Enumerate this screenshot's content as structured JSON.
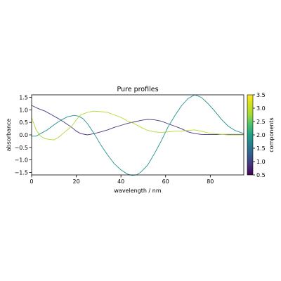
{
  "chart_data": {
    "type": "line",
    "title": "Pure profiles",
    "xlabel": "wavelength / nm",
    "ylabel": "absorbance",
    "xlim": [
      0,
      95
    ],
    "ylim": [
      -1.6,
      1.6
    ],
    "xticks": [
      0,
      20,
      40,
      60,
      80
    ],
    "xtick_labels": [
      "0",
      "20",
      "40",
      "60",
      "80"
    ],
    "yticks": [
      -1.5,
      -1.0,
      -0.5,
      0.0,
      0.5,
      1.0,
      1.5
    ],
    "ytick_labels": [
      "−1.5",
      "−1.0",
      "−0.5",
      "0.0",
      "0.5",
      "1.0",
      "1.5"
    ],
    "grid": false,
    "colorbar": {
      "label": "components",
      "range": [
        0.5,
        3.5
      ],
      "colormap": "viridis",
      "ticks": [
        0.5,
        1.0,
        1.5,
        2.0,
        2.5,
        3.0,
        3.5
      ],
      "tick_labels": [
        "0.5",
        "1.0",
        "1.5",
        "2.0",
        "2.5",
        "3.0",
        "3.5"
      ]
    },
    "series": [
      {
        "color": "#46337e",
        "points": [
          [
            0,
            1.18
          ],
          [
            3,
            1.05
          ],
          [
            6,
            0.95
          ],
          [
            9,
            0.8
          ],
          [
            12,
            0.65
          ],
          [
            15,
            0.48
          ],
          [
            18,
            0.3
          ],
          [
            20,
            0.15
          ],
          [
            22,
            0.05
          ],
          [
            25,
            0.0
          ],
          [
            28,
            0.05
          ],
          [
            31,
            0.12
          ],
          [
            34,
            0.2
          ],
          [
            37,
            0.3
          ],
          [
            40,
            0.38
          ],
          [
            43,
            0.46
          ],
          [
            46,
            0.52
          ],
          [
            49,
            0.58
          ],
          [
            52,
            0.62
          ],
          [
            55,
            0.6
          ],
          [
            58,
            0.55
          ],
          [
            61,
            0.45
          ],
          [
            64,
            0.35
          ],
          [
            67,
            0.25
          ],
          [
            70,
            0.12
          ],
          [
            73,
            0.05
          ],
          [
            76,
            0.02
          ],
          [
            79,
            0.01
          ],
          [
            82,
            0.01
          ],
          [
            85,
            0.02
          ],
          [
            88,
            0.02
          ],
          [
            91,
            0.02
          ],
          [
            95,
            0.02
          ]
        ]
      },
      {
        "color": "#21918c",
        "points": [
          [
            0,
            -0.05
          ],
          [
            2,
            -0.05
          ],
          [
            4,
            0.05
          ],
          [
            7,
            0.2
          ],
          [
            10,
            0.4
          ],
          [
            13,
            0.58
          ],
          [
            16,
            0.72
          ],
          [
            19,
            0.78
          ],
          [
            21,
            0.75
          ],
          [
            23,
            0.65
          ],
          [
            25,
            0.45
          ],
          [
            28,
            0.05
          ],
          [
            31,
            -0.4
          ],
          [
            34,
            -0.8
          ],
          [
            37,
            -1.15
          ],
          [
            40,
            -1.4
          ],
          [
            43,
            -1.57
          ],
          [
            45,
            -1.62
          ],
          [
            47,
            -1.6
          ],
          [
            49,
            -1.48
          ],
          [
            52,
            -1.2
          ],
          [
            55,
            -0.75
          ],
          [
            58,
            -0.25
          ],
          [
            61,
            0.3
          ],
          [
            64,
            0.75
          ],
          [
            67,
            1.15
          ],
          [
            70,
            1.45
          ],
          [
            73,
            1.6
          ],
          [
            76,
            1.5
          ],
          [
            79,
            1.25
          ],
          [
            82,
            0.95
          ],
          [
            85,
            0.62
          ],
          [
            88,
            0.35
          ],
          [
            91,
            0.18
          ],
          [
            95,
            0.05
          ]
        ]
      },
      {
        "color": "#addc30",
        "points": [
          [
            0,
            0.7
          ],
          [
            2,
            0.2
          ],
          [
            4,
            -0.05
          ],
          [
            6,
            -0.15
          ],
          [
            8,
            -0.18
          ],
          [
            10,
            -0.2
          ],
          [
            12,
            -0.1
          ],
          [
            14,
            0.05
          ],
          [
            16,
            0.2
          ],
          [
            18,
            0.35
          ],
          [
            20,
            0.6
          ],
          [
            22,
            0.8
          ],
          [
            25,
            0.9
          ],
          [
            28,
            0.95
          ],
          [
            31,
            0.93
          ],
          [
            34,
            0.9
          ],
          [
            37,
            0.8
          ],
          [
            40,
            0.7
          ],
          [
            43,
            0.55
          ],
          [
            46,
            0.45
          ],
          [
            49,
            0.3
          ],
          [
            52,
            0.18
          ],
          [
            55,
            0.12
          ],
          [
            58,
            0.1
          ],
          [
            61,
            0.12
          ],
          [
            64,
            0.15
          ],
          [
            67,
            0.15
          ],
          [
            70,
            0.18
          ],
          [
            73,
            0.2
          ],
          [
            76,
            0.15
          ],
          [
            79,
            0.08
          ],
          [
            82,
            0.05
          ],
          [
            85,
            0.02
          ],
          [
            88,
            0.0
          ],
          [
            91,
            0.0
          ],
          [
            95,
            0.0
          ]
        ]
      }
    ]
  }
}
